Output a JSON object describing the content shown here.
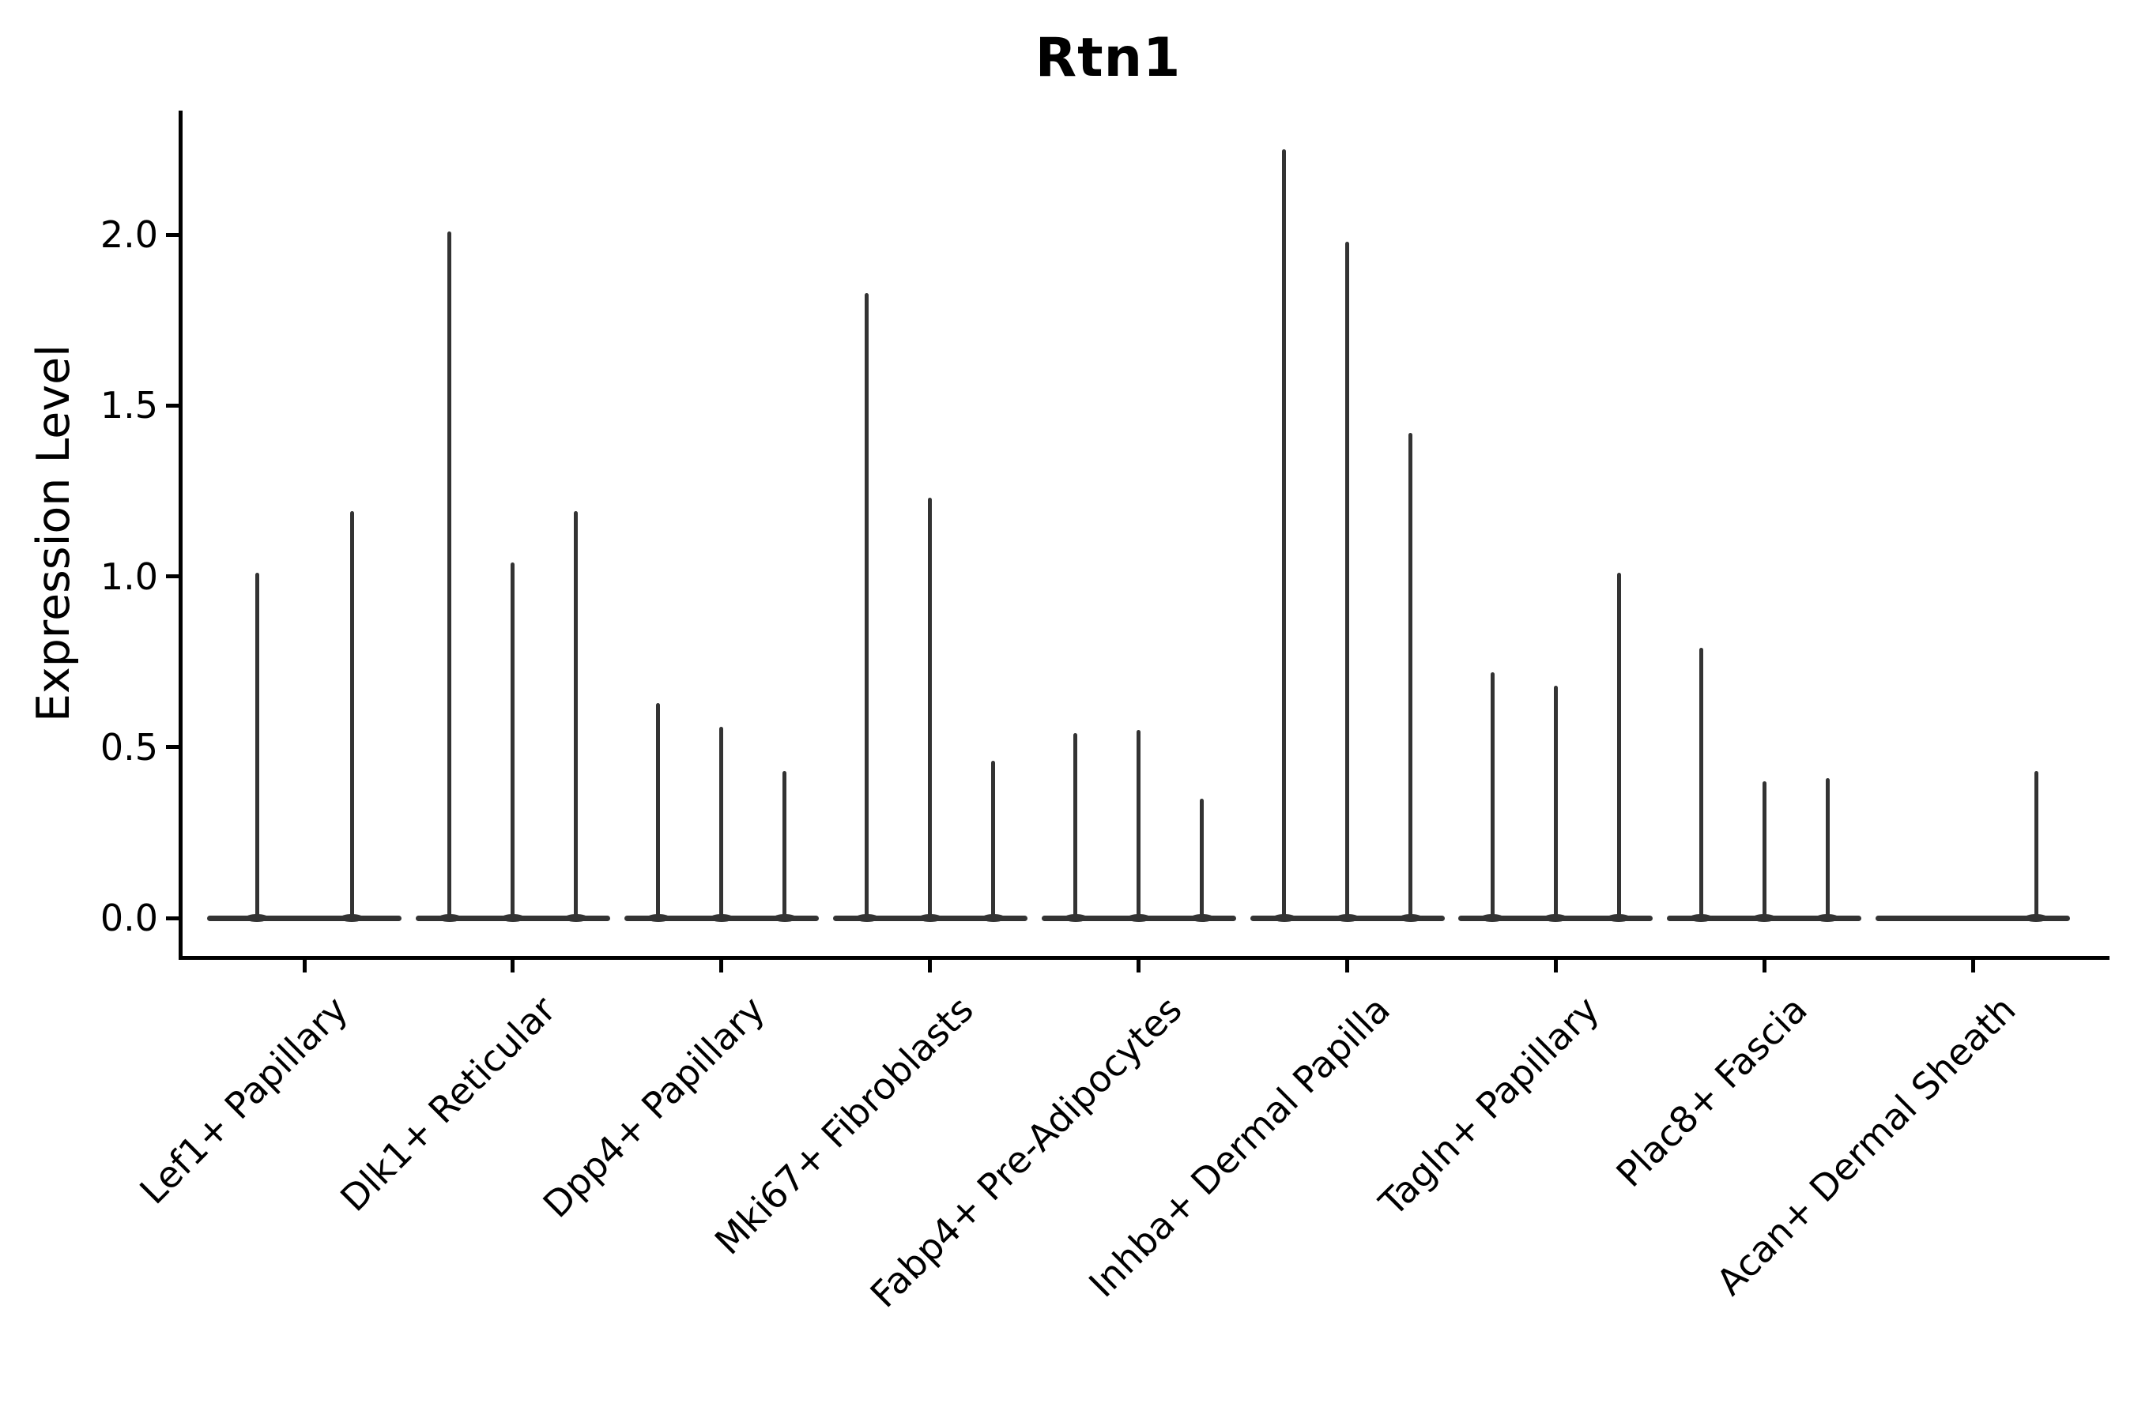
{
  "title": "Rtn1",
  "chart_data": {
    "type": "violin",
    "title": "Rtn1",
    "xlabel": "",
    "ylabel": "Expression Level",
    "yticks": [
      {
        "label": "0.0",
        "value": 0.0
      },
      {
        "label": "0.5",
        "value": 0.5
      },
      {
        "label": "1.0",
        "value": 1.0
      },
      {
        "label": "1.5",
        "value": 1.5
      },
      {
        "label": "2.0",
        "value": 2.0
      }
    ],
    "ylim": [
      -0.11,
      2.36
    ],
    "grid": false,
    "legend_position": "none",
    "categories": [
      "Lef1+ Papillary",
      "Dlk1+ Reticular",
      "Dpp4+ Papillary",
      "Mki67+ Fibroblasts",
      "Fabp4+ Pre-Adipocytes",
      "Inhba+ Dermal Papilla",
      "Tagln+ Papillary",
      "Plac8+ Fascia",
      "Acan+ Dermal Sheath"
    ],
    "series_note": "Each category holds thin violins (most cells at 0, thin tail up to the max expression value)",
    "groups": [
      {
        "category": "Lef1+ Papillary",
        "violins": [
          {
            "offset": -60,
            "max": 1.01
          },
          {
            "offset": 60,
            "max": 1.19
          }
        ]
      },
      {
        "category": "Dlk1+ Reticular",
        "violins": [
          {
            "offset": -80,
            "max": 2.01
          },
          {
            "offset": 0,
            "max": 1.04
          },
          {
            "offset": 80,
            "max": 1.19
          }
        ]
      },
      {
        "category": "Dpp4+ Papillary",
        "violins": [
          {
            "offset": -80,
            "max": 0.63
          },
          {
            "offset": 0,
            "max": 0.56
          },
          {
            "offset": 80,
            "max": 0.43
          }
        ]
      },
      {
        "category": "Mki67+ Fibroblasts",
        "violins": [
          {
            "offset": -80,
            "max": 1.83
          },
          {
            "offset": 0,
            "max": 1.23
          },
          {
            "offset": 80,
            "max": 0.46
          }
        ]
      },
      {
        "category": "Fabp4+ Pre-Adipocytes",
        "violins": [
          {
            "offset": -80,
            "max": 0.54
          },
          {
            "offset": 0,
            "max": 0.55
          },
          {
            "offset": 80,
            "max": 0.35
          }
        ]
      },
      {
        "category": "Inhba+ Dermal Papilla",
        "violins": [
          {
            "offset": -80,
            "max": 2.25
          },
          {
            "offset": 0,
            "max": 1.98
          },
          {
            "offset": 80,
            "max": 1.42
          }
        ]
      },
      {
        "category": "Tagln+ Papillary",
        "violins": [
          {
            "offset": -80,
            "max": 0.72
          },
          {
            "offset": 0,
            "max": 0.68
          },
          {
            "offset": 80,
            "max": 1.01
          }
        ]
      },
      {
        "category": "Plac8+ Fascia",
        "violins": [
          {
            "offset": -80,
            "max": 0.79
          },
          {
            "offset": 0,
            "max": 0.4
          },
          {
            "offset": 80,
            "max": 0.41
          }
        ]
      },
      {
        "category": "Acan+ Dermal Sheath",
        "violins": [
          {
            "offset": 80,
            "max": 0.43
          }
        ]
      }
    ],
    "colors": {
      "violin": "#333333",
      "axis": "#000000",
      "text": "#000000",
      "background": "#ffffff"
    }
  }
}
